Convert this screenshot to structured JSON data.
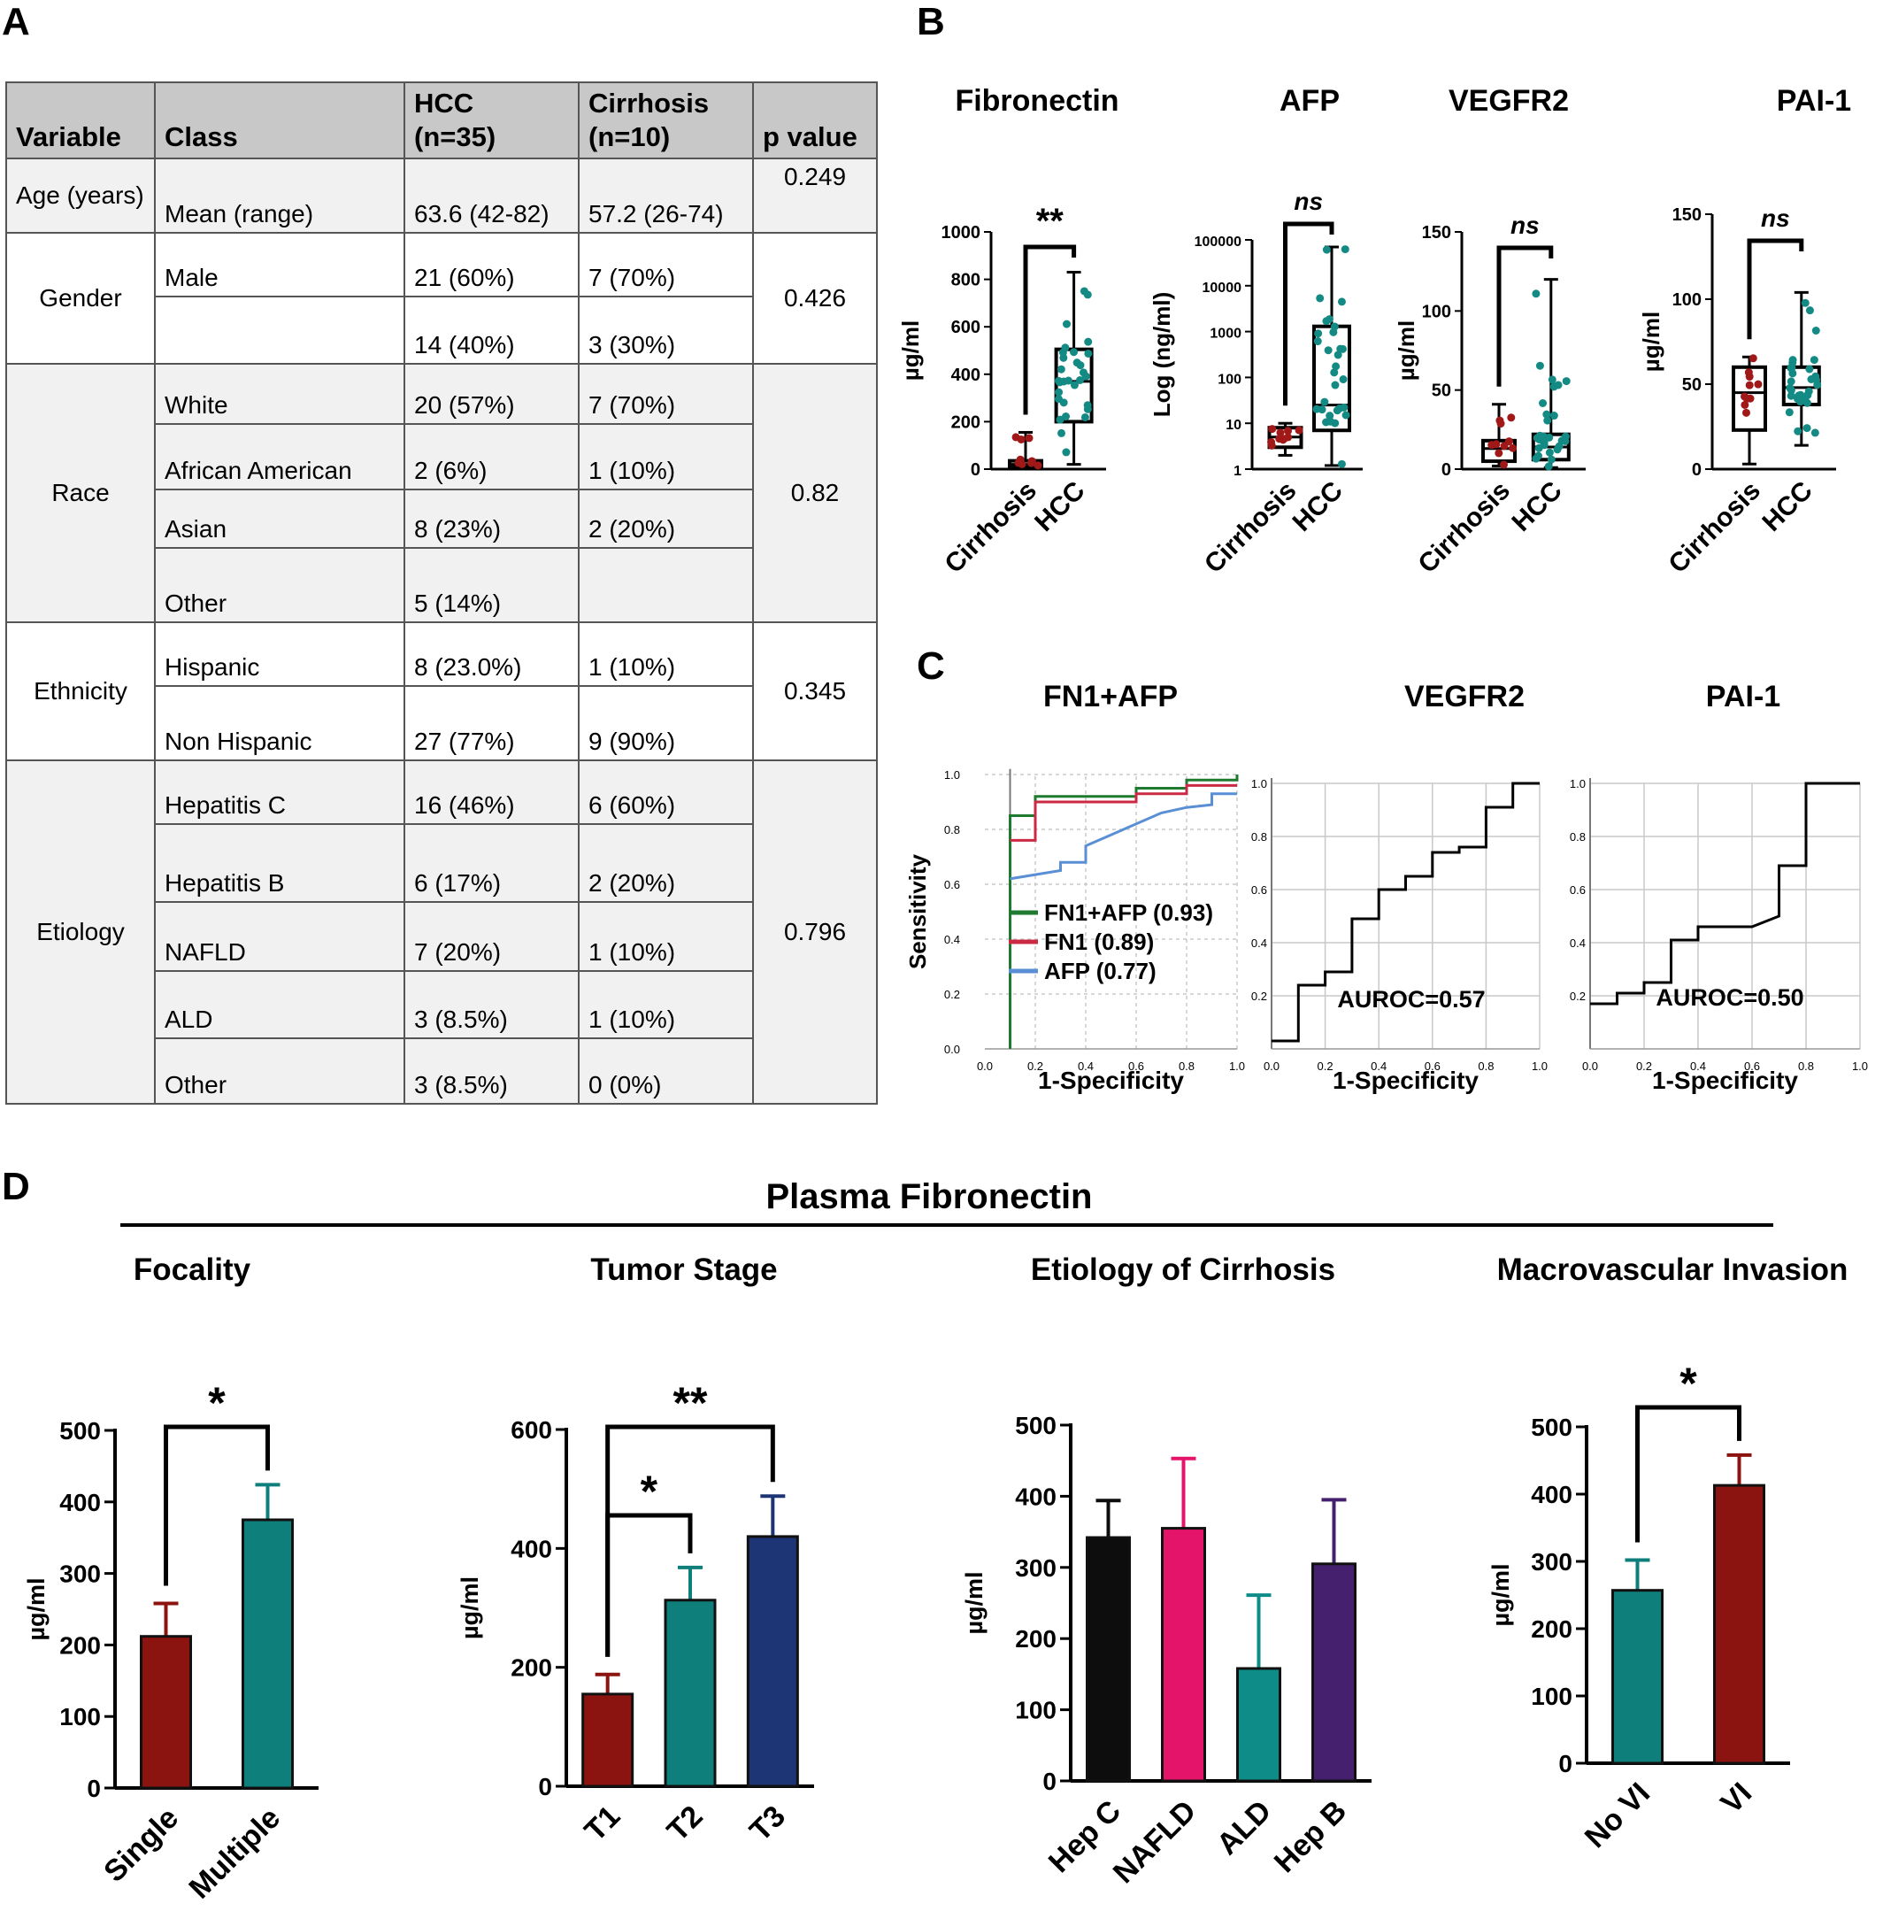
{
  "panels": {
    "A": "A",
    "B": "B",
    "C": "C",
    "D": "D"
  },
  "table": {
    "headers": [
      "Variable",
      "Class",
      "HCC\n(n=35)",
      "Cirrhosis\n(n=10)",
      "p value"
    ],
    "age": {
      "variable": "Age (years)",
      "class": "Mean (range)",
      "hcc": "63.6 (42-82)",
      "cirr": "57.2 (26-74)",
      "p": "0.249"
    },
    "gender": {
      "variable": "Gender",
      "p": "0.426",
      "rows": [
        {
          "class": "Male",
          "hcc": "21 (60%)",
          "cirr": "7 (70%)"
        },
        {
          "class": "",
          "hcc": "14 (40%)",
          "cirr": "3 (30%)"
        }
      ]
    },
    "race": {
      "variable": "Race",
      "p": "0.82",
      "rows": [
        {
          "class": "White",
          "hcc": "20 (57%)",
          "cirr": "7 (70%)"
        },
        {
          "class": "African American",
          "hcc": "2 (6%)",
          "cirr": "1 (10%)"
        },
        {
          "class": "Asian",
          "hcc": "8 (23%)",
          "cirr": "2 (20%)"
        },
        {
          "class": "Other",
          "hcc": "5 (14%)",
          "cirr": ""
        }
      ]
    },
    "ethnicity": {
      "variable": "Ethnicity",
      "p": "0.345",
      "rows": [
        {
          "class": "Hispanic",
          "hcc": "8 (23.0%)",
          "cirr": "1 (10%)"
        },
        {
          "class": "Non Hispanic",
          "hcc": "27 (77%)",
          "cirr": "9 (90%)"
        }
      ]
    },
    "etiology": {
      "variable": "Etiology",
      "p": "0.796",
      "rows": [
        {
          "class": "Hepatitis C",
          "hcc": "16 (46%)",
          "cirr": "6 (60%)"
        },
        {
          "class": "Hepatitis B",
          "hcc": "6 (17%)",
          "cirr": "2 (20%)"
        },
        {
          "class": "NAFLD",
          "hcc": "7 (20%)",
          "cirr": "1 (10%)"
        },
        {
          "class": "ALD",
          "hcc": "3 (8.5%)",
          "cirr": "1 (10%)"
        },
        {
          "class": "Other",
          "hcc": "3 (8.5%)",
          "cirr": "0 (0%)"
        }
      ]
    }
  },
  "panel_d_title": "Plasma Fibronectin",
  "chart_data": [
    {
      "id": "b1",
      "type": "box",
      "title": "Fibronectin",
      "ylabel": "µg/ml",
      "ylim": [
        0,
        1000
      ],
      "yticks": [
        "0",
        "200",
        "400",
        "600",
        "800",
        "1000"
      ],
      "categories": [
        "Cirrhosis",
        "HCC"
      ],
      "significance": "**",
      "boxes": [
        {
          "min": 5,
          "q1": 10,
          "median": 20,
          "q3": 35,
          "max": 155,
          "color": "#a01818"
        },
        {
          "min": 20,
          "q1": 200,
          "median": 370,
          "q3": 505,
          "max": 830,
          "color": "#138a84"
        }
      ]
    },
    {
      "id": "b2",
      "type": "box",
      "title": "AFP",
      "ylabel": "Log (ng/ml)",
      "yscale": "log",
      "ylim": [
        1,
        100000
      ],
      "yticks": [
        "1",
        "10",
        "100",
        "1000",
        "10000",
        "100000"
      ],
      "categories": [
        "Cirrhosis",
        "HCC"
      ],
      "significance": "ns",
      "boxes": [
        {
          "min": 2,
          "q1": 3,
          "median": 5,
          "q3": 8,
          "max": 10,
          "color": "#a01818"
        },
        {
          "min": 1.2,
          "q1": 7,
          "median": 25,
          "q3": 1300,
          "max": 70000,
          "color": "#138a84"
        }
      ]
    },
    {
      "id": "b3",
      "type": "box",
      "title": "VEGFR2",
      "ylabel": "µg/ml",
      "ylim": [
        0,
        150
      ],
      "yticks": [
        "0",
        "50",
        "100",
        "150"
      ],
      "categories": [
        "Cirrhosis",
        "HCC"
      ],
      "significance": "ns",
      "boxes": [
        {
          "min": 2,
          "q1": 5,
          "median": 13,
          "q3": 18,
          "max": 41,
          "color": "#a01818"
        },
        {
          "min": 1,
          "q1": 6,
          "median": 14,
          "q3": 22,
          "max": 120,
          "color": "#138a84"
        }
      ]
    },
    {
      "id": "b4",
      "type": "box",
      "title": "PAI-1",
      "ylabel": "µg/ml",
      "ylim": [
        0,
        150
      ],
      "yticks": [
        "0",
        "50",
        "100",
        "150"
      ],
      "categories": [
        "Cirrhosis",
        "HCC"
      ],
      "significance": "ns",
      "boxes": [
        {
          "min": 3,
          "q1": 23,
          "median": 45,
          "q3": 60,
          "max": 66,
          "color": "#a01818"
        },
        {
          "min": 14,
          "q1": 38,
          "median": 48,
          "q3": 60,
          "max": 104,
          "color": "#138a84"
        }
      ]
    },
    {
      "id": "c1",
      "type": "line",
      "title": "FN1+AFP",
      "xlabel": "1-Specificity",
      "ylabel": "Sensitivity",
      "xlim": [
        0,
        1
      ],
      "ylim": [
        0,
        1
      ],
      "series": [
        {
          "name": "FN1+AFP (0.93)",
          "color": "#1e7a2e",
          "points": [
            [
              0.1,
              0.0
            ],
            [
              0.1,
              0.85
            ],
            [
              0.2,
              0.85
            ],
            [
              0.2,
              0.92
            ],
            [
              0.6,
              0.92
            ],
            [
              0.6,
              0.95
            ],
            [
              0.8,
              0.95
            ],
            [
              0.8,
              0.98
            ],
            [
              1.0,
              0.98
            ],
            [
              1.0,
              1.0
            ]
          ]
        },
        {
          "name": "FN1 (0.89)",
          "color": "#cc2a44",
          "points": [
            [
              0.1,
              0.76
            ],
            [
              0.2,
              0.76
            ],
            [
              0.2,
              0.9
            ],
            [
              0.6,
              0.9
            ],
            [
              0.6,
              0.93
            ],
            [
              0.8,
              0.93
            ],
            [
              0.8,
              0.96
            ],
            [
              1.0,
              0.96
            ]
          ]
        },
        {
          "name": "AFP (0.77)",
          "color": "#5a8fd6",
          "points": [
            [
              0.1,
              0.62
            ],
            [
              0.3,
              0.65
            ],
            [
              0.3,
              0.68
            ],
            [
              0.4,
              0.68
            ],
            [
              0.4,
              0.74
            ],
            [
              0.5,
              0.78
            ],
            [
              0.7,
              0.86
            ],
            [
              0.8,
              0.88
            ],
            [
              0.9,
              0.89
            ],
            [
              0.9,
              0.93
            ],
            [
              1.0,
              0.93
            ]
          ]
        }
      ]
    },
    {
      "id": "c2",
      "type": "line",
      "title": "VEGFR2",
      "xlabel": "1-Specificity",
      "annotation": "AUROC=0.57",
      "xlim": [
        0,
        1
      ],
      "ylim": [
        0,
        1
      ],
      "series": [
        {
          "color": "#000000",
          "points": [
            [
              0,
              0.03
            ],
            [
              0.1,
              0.03
            ],
            [
              0.1,
              0.24
            ],
            [
              0.2,
              0.24
            ],
            [
              0.2,
              0.29
            ],
            [
              0.3,
              0.29
            ],
            [
              0.3,
              0.49
            ],
            [
              0.4,
              0.49
            ],
            [
              0.4,
              0.6
            ],
            [
              0.5,
              0.6
            ],
            [
              0.5,
              0.65
            ],
            [
              0.6,
              0.65
            ],
            [
              0.6,
              0.74
            ],
            [
              0.7,
              0.74
            ],
            [
              0.7,
              0.76
            ],
            [
              0.8,
              0.76
            ],
            [
              0.8,
              0.91
            ],
            [
              0.9,
              0.91
            ],
            [
              0.9,
              1.0
            ],
            [
              1.0,
              1.0
            ]
          ]
        }
      ]
    },
    {
      "id": "c3",
      "type": "line",
      "title": "PAI-1",
      "xlabel": "1-Specificity",
      "annotation": "AUROC=0.50",
      "xlim": [
        0,
        1
      ],
      "ylim": [
        0,
        1
      ],
      "series": [
        {
          "color": "#000000",
          "points": [
            [
              0,
              0.17
            ],
            [
              0.1,
              0.17
            ],
            [
              0.1,
              0.21
            ],
            [
              0.2,
              0.21
            ],
            [
              0.2,
              0.25
            ],
            [
              0.3,
              0.25
            ],
            [
              0.3,
              0.41
            ],
            [
              0.4,
              0.41
            ],
            [
              0.4,
              0.46
            ],
            [
              0.6,
              0.46
            ],
            [
              0.7,
              0.5
            ],
            [
              0.7,
              0.69
            ],
            [
              0.8,
              0.69
            ],
            [
              0.8,
              1.0
            ],
            [
              1.0,
              1.0
            ]
          ]
        }
      ]
    },
    {
      "id": "d1",
      "type": "bar",
      "title": "Focality",
      "ylabel": "µg/ml",
      "ylim": [
        0,
        500
      ],
      "yticks": [
        "0",
        "100",
        "200",
        "300",
        "400",
        "500"
      ],
      "categories": [
        "Single",
        "Multiple"
      ],
      "values": [
        212,
        375
      ],
      "errors": [
        46,
        49
      ],
      "colors": [
        "#8b1410",
        "#0e7f7b"
      ],
      "brackets": [
        {
          "from": 0,
          "to": 1,
          "label": "*"
        }
      ]
    },
    {
      "id": "d2",
      "type": "bar",
      "title": "Tumor Stage",
      "ylabel": "µg/ml",
      "ylim": [
        0,
        600
      ],
      "yticks": [
        "0",
        "200",
        "400",
        "600"
      ],
      "categories": [
        "T1",
        "T2",
        "T3"
      ],
      "values": [
        155,
        313,
        420
      ],
      "errors": [
        33,
        55,
        68
      ],
      "colors": [
        "#8b1410",
        "#0e7f7b",
        "#1e3575"
      ],
      "brackets": [
        {
          "from": 0,
          "to": 1,
          "label": "*"
        },
        {
          "from": 0,
          "to": 2,
          "label": "**"
        }
      ]
    },
    {
      "id": "d3",
      "type": "bar",
      "title": "Etiology of Cirrhosis",
      "ylabel": "µg/ml",
      "ylim": [
        0,
        500
      ],
      "yticks": [
        "0",
        "100",
        "200",
        "300",
        "400",
        "500"
      ],
      "categories": [
        "Hep C",
        "NAFLD",
        "ALD",
        "Hep B"
      ],
      "values": [
        342,
        355,
        158,
        305
      ],
      "errors": [
        52,
        98,
        103,
        90
      ],
      "colors": [
        "#0d0d0d",
        "#e5146b",
        "#0e8c88",
        "#44206e"
      ],
      "brackets": []
    },
    {
      "id": "d4",
      "type": "bar",
      "title": "Macrovascular Invasion",
      "ylabel": "µg/ml",
      "ylim": [
        0,
        500
      ],
      "yticks": [
        "0",
        "100",
        "200",
        "300",
        "400",
        "500"
      ],
      "categories": [
        "No VI",
        "VI"
      ],
      "values": [
        257,
        413
      ],
      "errors": [
        45,
        45
      ],
      "colors": [
        "#0e7f7b",
        "#8b1410"
      ],
      "brackets": [
        {
          "from": 0,
          "to": 1,
          "label": "*"
        }
      ]
    }
  ]
}
